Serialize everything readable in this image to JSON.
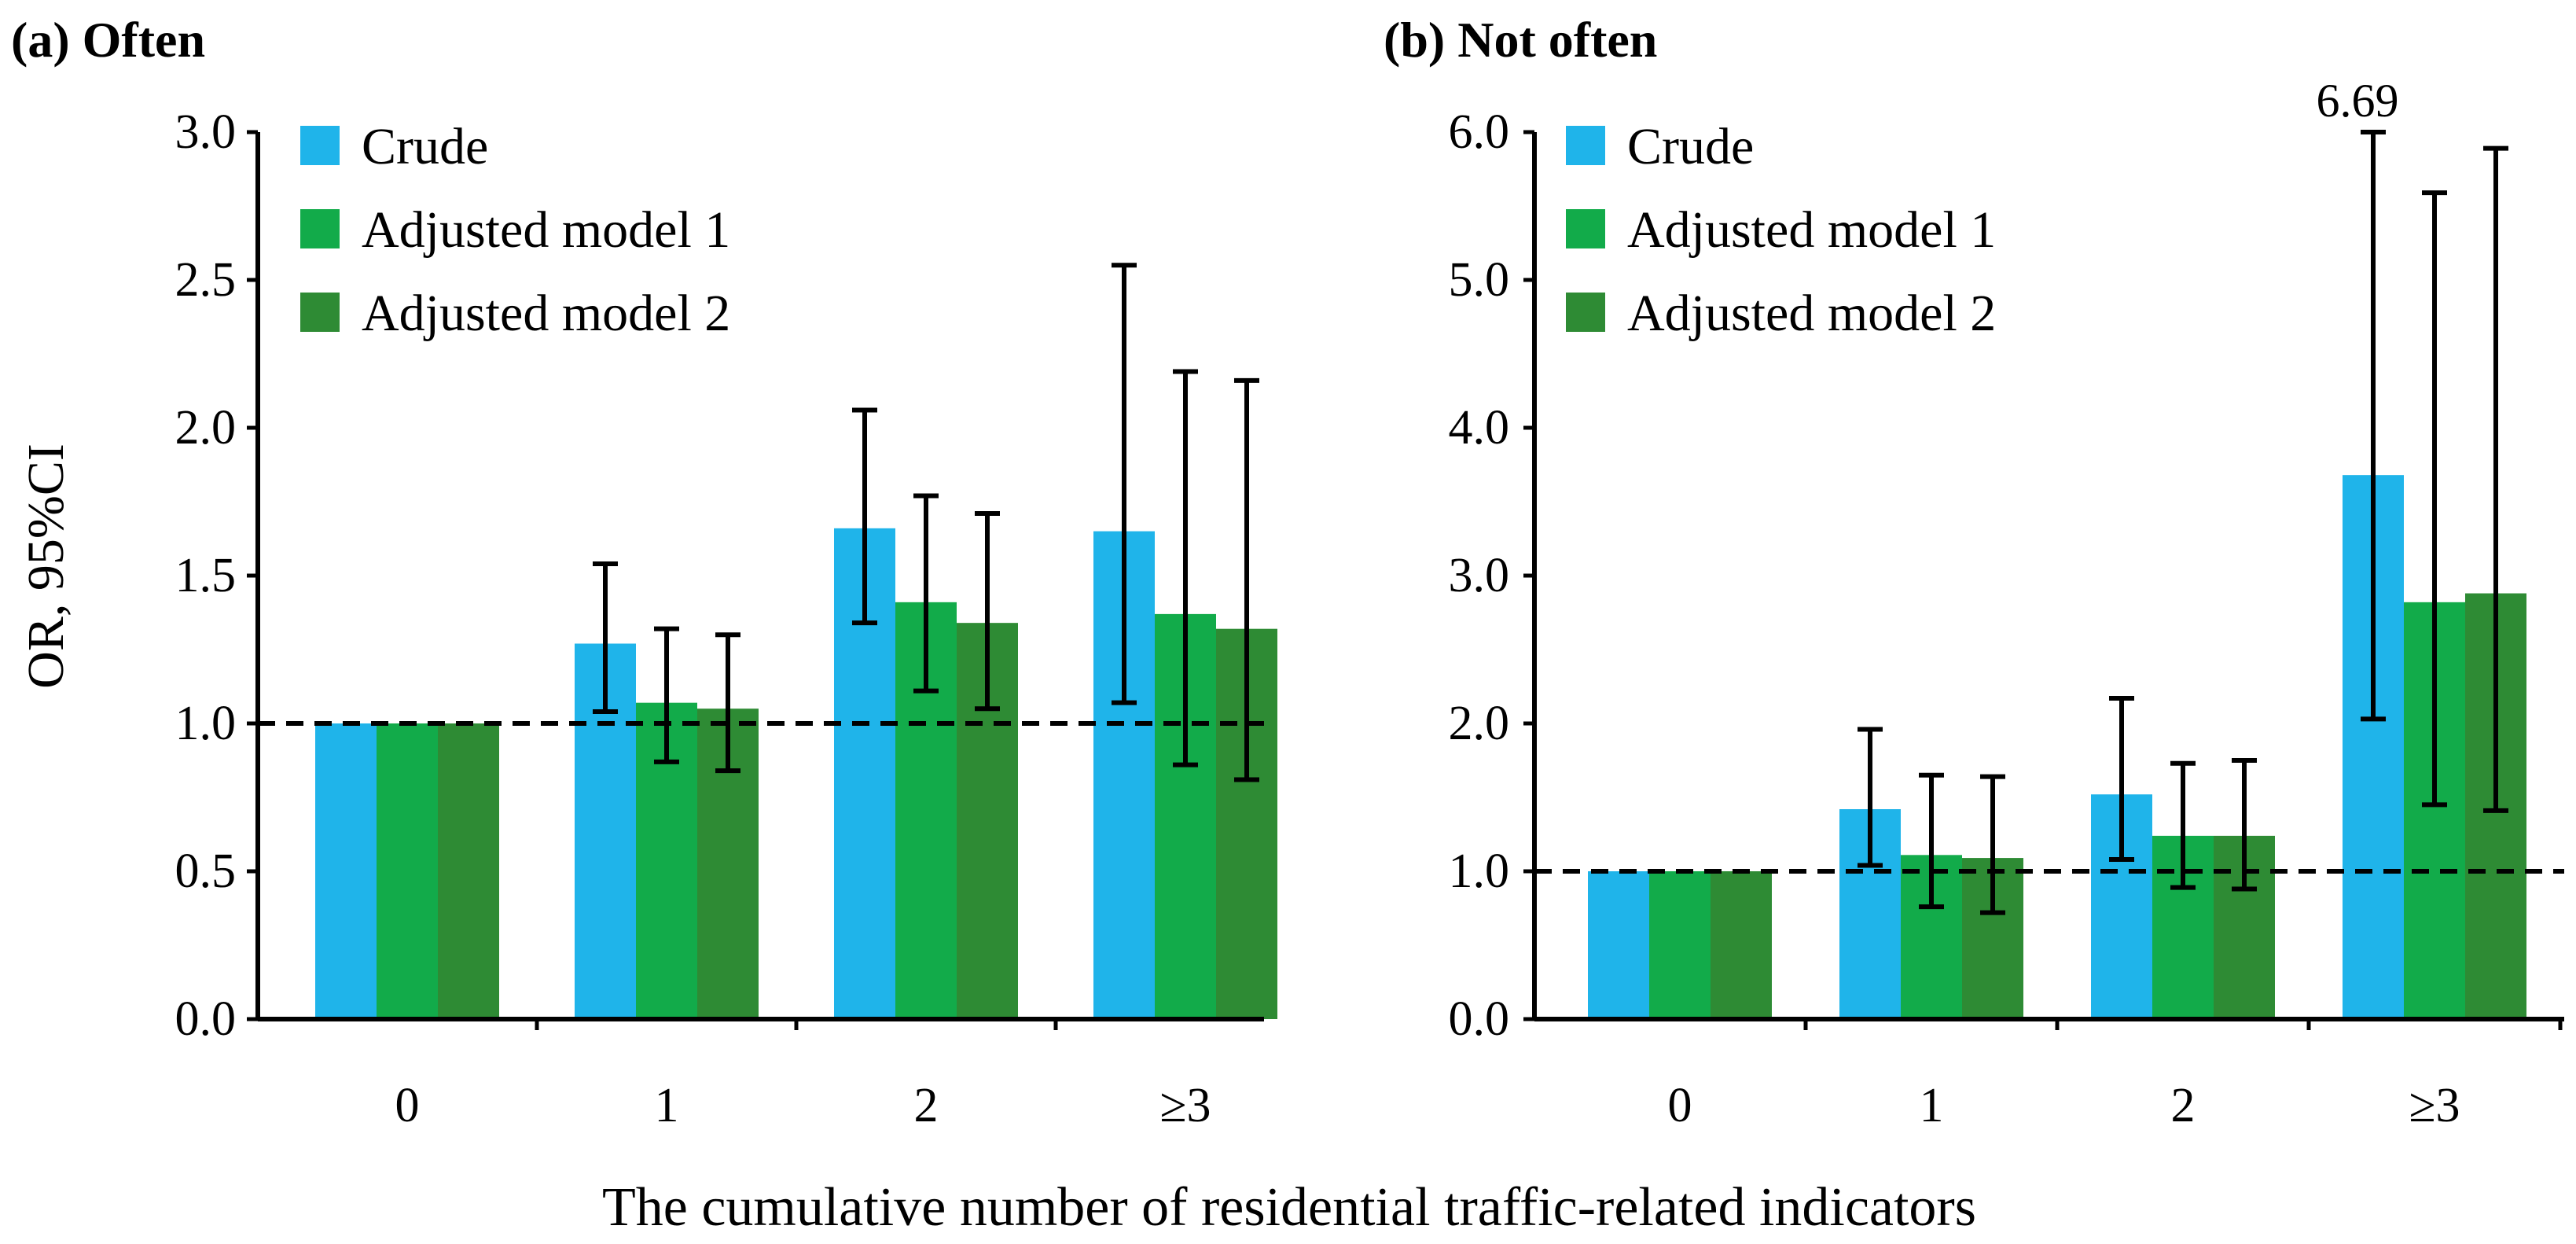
{
  "figure": {
    "xlabel": "The cumulative number of residential traffic-related indicators"
  },
  "legend": [
    "Crude",
    "Adjusted model 1",
    "Adjusted model 2"
  ],
  "colors": {
    "crude": "#1fb4ea",
    "adjusted_model_1": "#12ab4a",
    "adjusted_model_2": "#2e8b34",
    "errorbar": "#000000",
    "reference_line": "#000000"
  },
  "chart_data": [
    {
      "type": "bar",
      "title": "(a) Often",
      "ylabel": "OR, 95%CI",
      "xlabel": "",
      "categories": [
        "0",
        "1",
        "2",
        "≥3"
      ],
      "ylim": [
        0,
        3.0
      ],
      "yticks": [
        "0.0",
        "0.5",
        "1.0",
        "1.5",
        "2.0",
        "2.5",
        "3.0"
      ],
      "reference_line": 1.0,
      "legend_position": "top-left",
      "series": [
        {
          "name": "Crude",
          "values": [
            1.0,
            1.27,
            1.66,
            1.65
          ],
          "ci_lower": [
            1.0,
            1.04,
            1.34,
            1.07
          ],
          "ci_upper": [
            1.0,
            1.54,
            2.06,
            2.55
          ]
        },
        {
          "name": "Adjusted model 1",
          "values": [
            1.0,
            1.07,
            1.41,
            1.37
          ],
          "ci_lower": [
            1.0,
            0.87,
            1.11,
            0.86
          ],
          "ci_upper": [
            1.0,
            1.32,
            1.77,
            2.19
          ]
        },
        {
          "name": "Adjusted model 2",
          "values": [
            1.0,
            1.05,
            1.34,
            1.32
          ],
          "ci_lower": [
            1.0,
            0.84,
            1.05,
            0.81
          ],
          "ci_upper": [
            1.0,
            1.3,
            1.71,
            2.16
          ]
        }
      ],
      "annotations": []
    },
    {
      "type": "bar",
      "title": "(b) Not often",
      "ylabel": "",
      "xlabel": "",
      "categories": [
        "0",
        "1",
        "2",
        "≥3"
      ],
      "ylim": [
        0,
        6.0
      ],
      "yticks": [
        "0.0",
        "1.0",
        "2.0",
        "3.0",
        "4.0",
        "5.0",
        "6.0"
      ],
      "reference_line": 1.0,
      "legend_position": "top-left",
      "series": [
        {
          "name": "Crude",
          "values": [
            1.0,
            1.42,
            1.52,
            3.68
          ],
          "ci_lower": [
            1.0,
            1.04,
            1.08,
            2.03
          ],
          "ci_upper": [
            1.0,
            1.96,
            2.17,
            6.69
          ]
        },
        {
          "name": "Adjusted model 1",
          "values": [
            1.0,
            1.11,
            1.24,
            2.82
          ],
          "ci_lower": [
            1.0,
            0.76,
            0.89,
            1.45
          ],
          "ci_upper": [
            1.0,
            1.65,
            1.73,
            5.59
          ]
        },
        {
          "name": "Adjusted model 2",
          "values": [
            1.0,
            1.09,
            1.24,
            2.88
          ],
          "ci_lower": [
            1.0,
            0.72,
            0.88,
            1.41
          ],
          "ci_upper": [
            1.0,
            1.64,
            1.75,
            5.89
          ]
        }
      ],
      "annotations": [
        {
          "text": "6.69",
          "series": "Crude",
          "category": "≥3",
          "note_value": 6.69
        }
      ]
    }
  ]
}
